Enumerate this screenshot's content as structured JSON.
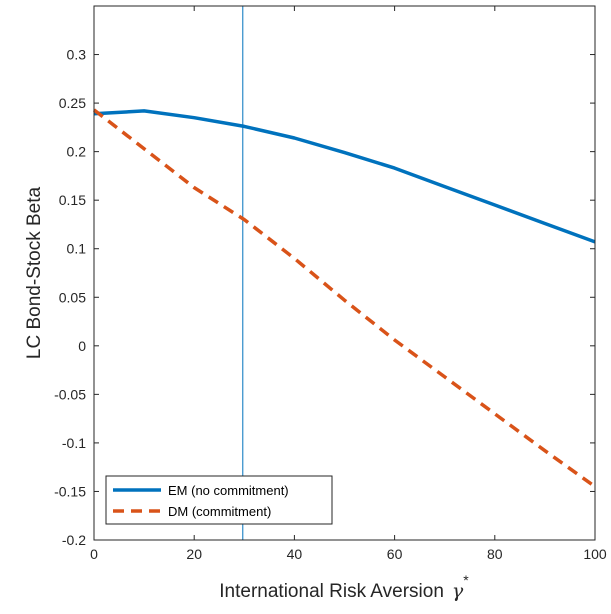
{
  "chart_data": {
    "type": "line",
    "xlabel": "International Risk Aversion",
    "xlabel_symbol": "γ",
    "xlabel_superscript": "*",
    "ylabel": "LC Bond-Stock Beta",
    "xlim": [
      0,
      100
    ],
    "ylim": [
      -0.2,
      0.35
    ],
    "x_ticks": [
      0,
      20,
      40,
      60,
      80,
      100
    ],
    "x_tick_labels": [
      "0",
      "20",
      "40",
      "60",
      "80",
      "100"
    ],
    "y_ticks": [
      -0.2,
      -0.15,
      -0.1,
      -0.05,
      0,
      0.05,
      0.1,
      0.15,
      0.2,
      0.25,
      0.3
    ],
    "y_tick_labels": [
      "-0.2",
      "-0.15",
      "-0.1",
      "-0.05",
      "0",
      "0.05",
      "0.1",
      "0.15",
      "0.2",
      "0.25",
      "0.3"
    ],
    "grid": false,
    "legend_position": "bottom-left",
    "vline_x": 29.7,
    "series": [
      {
        "name": "EM (no commitment)",
        "color": "#0072BD",
        "style": "solid",
        "x": [
          0,
          10,
          20,
          30,
          40,
          50,
          60,
          70,
          80,
          90,
          100
        ],
        "y": [
          0.239,
          0.242,
          0.235,
          0.226,
          0.214,
          0.199,
          0.183,
          0.164,
          0.145,
          0.126,
          0.107
        ]
      },
      {
        "name": "DM (commitment)",
        "color": "#D95319",
        "style": "dashed",
        "x": [
          0,
          10,
          20,
          30,
          40,
          50,
          60,
          70,
          80,
          90,
          100
        ],
        "y": [
          0.243,
          0.203,
          0.163,
          0.13,
          0.09,
          0.047,
          0.006,
          -0.032,
          -0.07,
          -0.108,
          -0.145
        ]
      }
    ],
    "vline_color": "#0072BD"
  }
}
